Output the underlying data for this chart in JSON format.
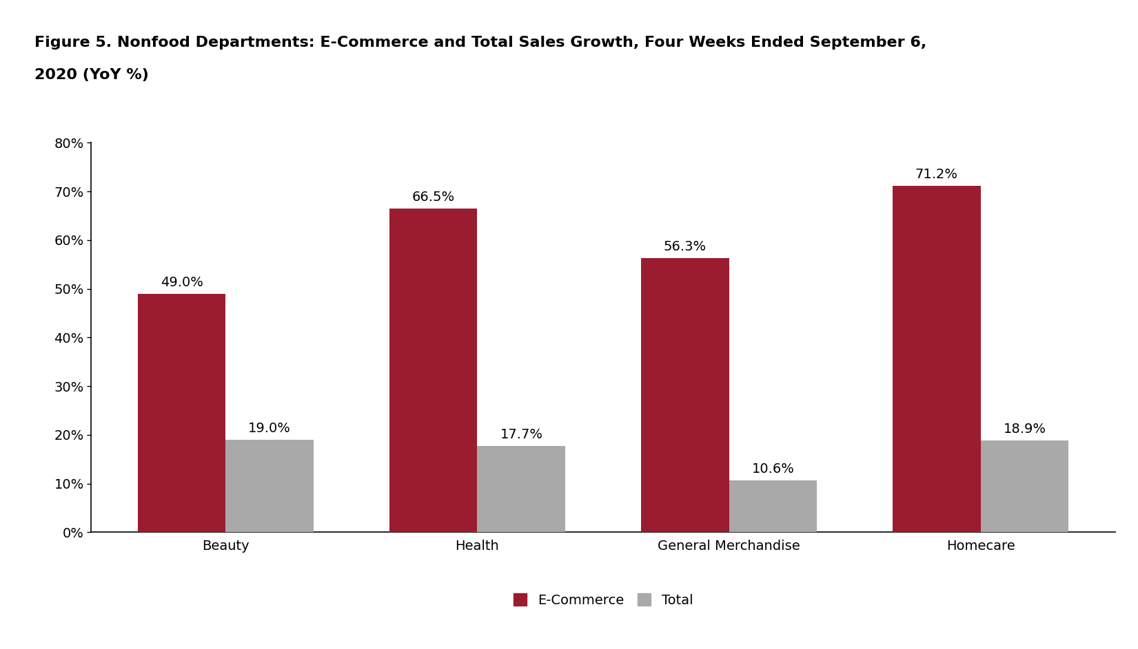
{
  "title_line1": "Figure 5. Nonfood Departments: E-Commerce and Total Sales Growth, Four Weeks Ended September 6,",
  "title_line2": "2020 (YoY %)",
  "categories": [
    "Beauty",
    "Health",
    "General Merchandise",
    "Homecare"
  ],
  "ecommerce_values": [
    49.0,
    66.5,
    56.3,
    71.2
  ],
  "total_values": [
    19.0,
    17.7,
    10.6,
    18.9
  ],
  "ecommerce_color": "#9B1C2E",
  "total_color": "#A9A9A9",
  "ylim": [
    0,
    80
  ],
  "yticks": [
    0,
    10,
    20,
    30,
    40,
    50,
    60,
    70,
    80
  ],
  "bar_width": 0.35,
  "title_fontsize": 16,
  "tick_fontsize": 14,
  "annotation_fontsize": 14,
  "legend_fontsize": 14,
  "background_color": "#ffffff",
  "header_color": "#111111",
  "legend_labels": [
    "E-Commerce",
    "Total"
  ]
}
